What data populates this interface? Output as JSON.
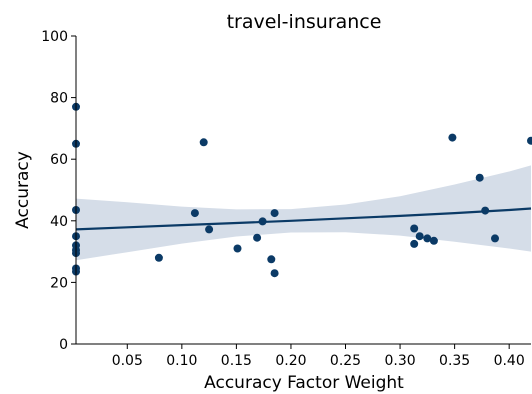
{
  "chart_data": {
    "type": "scatter",
    "title": "travel-insurance",
    "xlabel": "Accuracy Factor Weight",
    "ylabel": "Accuracy",
    "xlim": [
      0.003,
      0.42
    ],
    "ylim": [
      0,
      100
    ],
    "xticks": [
      0.05,
      0.1,
      0.15,
      0.2,
      0.25,
      0.3,
      0.35,
      0.4
    ],
    "xtick_labels": [
      "0.05",
      "0.10",
      "0.15",
      "0.20",
      "0.25",
      "0.30",
      "0.35",
      "0.40"
    ],
    "yticks": [
      0,
      20,
      40,
      60,
      80,
      100
    ],
    "ytick_labels": [
      "0",
      "20",
      "40",
      "60",
      "80",
      "100"
    ],
    "grid": false,
    "colors": {
      "points": "#0b3a66",
      "line": "#0b3a66",
      "band": "#d5dde8"
    },
    "points": [
      {
        "x": 0.003,
        "y": 77.0
      },
      {
        "x": 0.003,
        "y": 65.0
      },
      {
        "x": 0.003,
        "y": 43.5
      },
      {
        "x": 0.003,
        "y": 35.0
      },
      {
        "x": 0.003,
        "y": 32.0
      },
      {
        "x": 0.003,
        "y": 30.5
      },
      {
        "x": 0.003,
        "y": 29.5
      },
      {
        "x": 0.003,
        "y": 24.5
      },
      {
        "x": 0.003,
        "y": 23.5
      },
      {
        "x": 0.079,
        "y": 28.0
      },
      {
        "x": 0.112,
        "y": 42.5
      },
      {
        "x": 0.12,
        "y": 65.5
      },
      {
        "x": 0.125,
        "y": 37.2
      },
      {
        "x": 0.151,
        "y": 31.0
      },
      {
        "x": 0.169,
        "y": 34.5
      },
      {
        "x": 0.174,
        "y": 39.8
      },
      {
        "x": 0.182,
        "y": 27.5
      },
      {
        "x": 0.185,
        "y": 42.5
      },
      {
        "x": 0.185,
        "y": 23.0
      },
      {
        "x": 0.313,
        "y": 37.5
      },
      {
        "x": 0.313,
        "y": 32.5
      },
      {
        "x": 0.318,
        "y": 35.0
      },
      {
        "x": 0.325,
        "y": 34.3
      },
      {
        "x": 0.331,
        "y": 33.5
      },
      {
        "x": 0.348,
        "y": 67.0
      },
      {
        "x": 0.373,
        "y": 54.0
      },
      {
        "x": 0.378,
        "y": 43.3
      },
      {
        "x": 0.387,
        "y": 34.3
      },
      {
        "x": 0.42,
        "y": 66.0
      }
    ],
    "regression": {
      "x": [
        0.003,
        0.05,
        0.1,
        0.15,
        0.2,
        0.25,
        0.3,
        0.35,
        0.4,
        0.42
      ],
      "y": [
        37.2,
        37.9,
        38.6,
        39.3,
        40.0,
        40.8,
        41.6,
        42.5,
        43.5,
        44.0
      ],
      "ci_lower": [
        27.2,
        29.8,
        32.6,
        34.9,
        36.2,
        36.3,
        35.2,
        33.2,
        31.0,
        30.0
      ],
      "ci_upper": [
        47.2,
        46.0,
        44.6,
        43.7,
        43.8,
        45.3,
        48.0,
        51.8,
        56.0,
        58.0
      ]
    }
  }
}
